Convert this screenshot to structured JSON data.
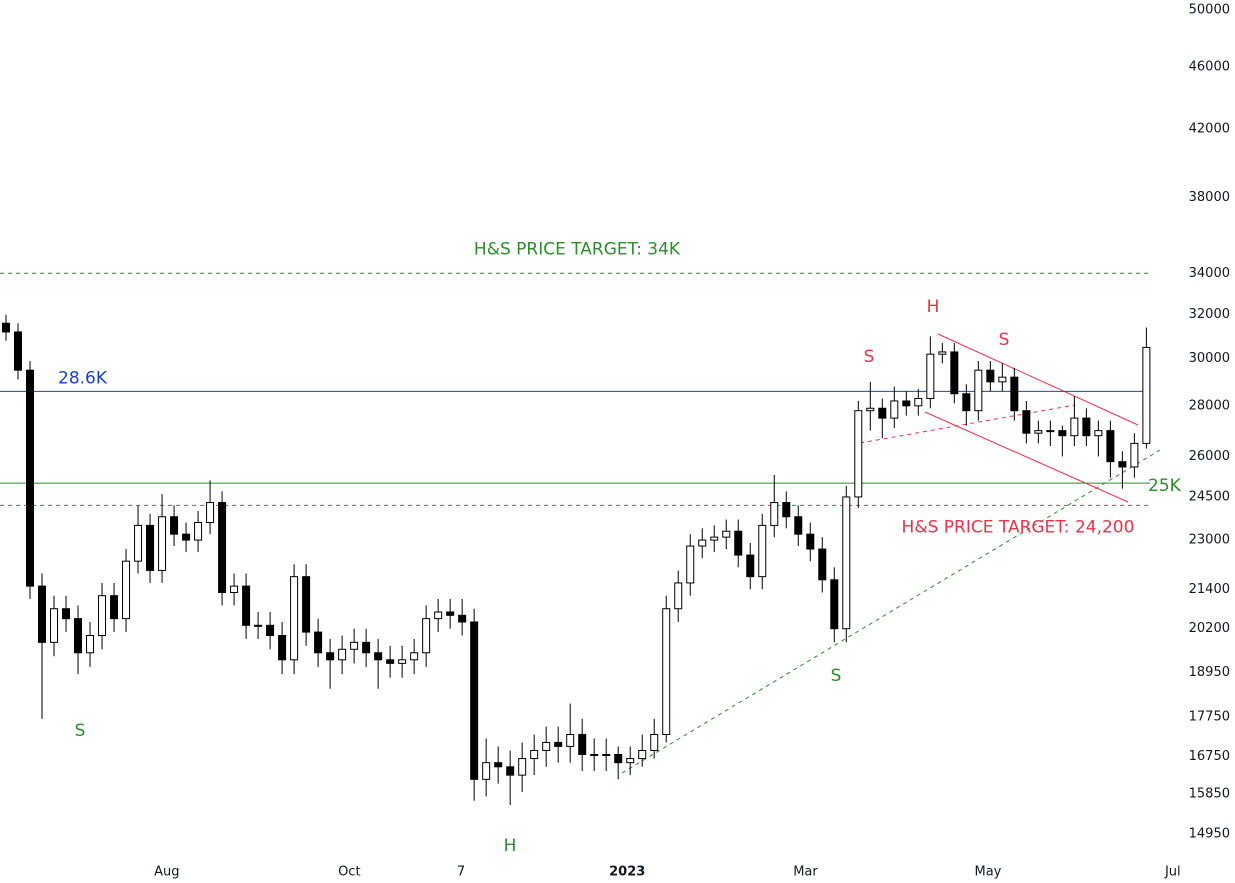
{
  "chart_data": {
    "type": "candlestick",
    "log_scale": true,
    "xlim": [
      -0.5,
      97.8
    ],
    "xticks": [
      {
        "value": 13.4,
        "label": "Aug"
      },
      {
        "value": 28.6,
        "label": "Oct"
      },
      {
        "value": 37.9,
        "label": "7"
      },
      {
        "value": 51.75,
        "label": "2023"
      },
      {
        "value": 66.6,
        "label": "Mar"
      },
      {
        "value": 81.8,
        "label": "May"
      },
      {
        "value": 97.2,
        "label": "Jul"
      }
    ],
    "ylim": [
      14500,
      50740
    ],
    "yticks": [
      50000,
      46000,
      42000,
      38000,
      34000,
      32000,
      30000,
      28000,
      26000,
      24500,
      23000,
      21400,
      20200,
      18950,
      17750,
      16750,
      15850,
      14950
    ],
    "up_color": "#ffffff",
    "down_color": "#000000",
    "wick_color": "#000000",
    "open": [
      31600,
      31200,
      29500,
      21500,
      19800,
      20800,
      20500,
      19500,
      20000,
      21200,
      20500,
      22300,
      23500,
      22000,
      23800,
      23200,
      23000,
      23600,
      24300,
      21300,
      21500,
      20300,
      20300,
      20000,
      19300,
      21800,
      20100,
      19500,
      19300,
      19600,
      19800,
      19500,
      19300,
      19200,
      19300,
      19500,
      20500,
      20700,
      20600,
      20400,
      16200,
      16600,
      16500,
      16300,
      16700,
      16900,
      17100,
      17000,
      17300,
      16800,
      16800,
      16800,
      16600,
      16700,
      16900,
      17300,
      20800,
      21600,
      22800,
      23000,
      23100,
      23300,
      22500,
      21800,
      23500,
      24300,
      23800,
      23200,
      22700,
      21700,
      20200,
      24500,
      27800,
      27900,
      27500,
      28200,
      28000,
      28300,
      30200,
      30300,
      28500,
      27800,
      29500,
      29000,
      29200,
      27800,
      26900,
      27000,
      27000,
      26800,
      27500,
      26800,
      27000,
      25800,
      25600,
      26500
    ],
    "high": [
      32000,
      31600,
      29900,
      21900,
      21200,
      21200,
      20900,
      20400,
      21600,
      21600,
      22700,
      24200,
      23900,
      24600,
      24200,
      23600,
      24000,
      25100,
      24700,
      21900,
      21900,
      20700,
      20700,
      20400,
      22200,
      22200,
      20500,
      19900,
      20000,
      20200,
      20200,
      19900,
      19700,
      19700,
      19900,
      20900,
      21100,
      21100,
      21100,
      20800,
      17200,
      17000,
      16900,
      17100,
      17300,
      17500,
      17500,
      18100,
      17700,
      17200,
      17200,
      17000,
      17000,
      17300,
      17700,
      21200,
      22000,
      23200,
      23400,
      23500,
      23700,
      23700,
      22900,
      23900,
      25300,
      24700,
      24200,
      23600,
      23100,
      22100,
      24900,
      28200,
      29000,
      28300,
      28800,
      28600,
      28700,
      31000,
      30700,
      30700,
      28900,
      29900,
      29900,
      29800,
      29600,
      28200,
      27400,
      27400,
      27200,
      28400,
      27900,
      27400,
      27400,
      26200,
      26900,
      31400
    ],
    "low": [
      30800,
      29100,
      21100,
      17700,
      19400,
      20100,
      18900,
      19100,
      19600,
      20100,
      20100,
      21900,
      21600,
      21600,
      22800,
      22600,
      22600,
      23200,
      20900,
      20900,
      19900,
      19900,
      19600,
      18900,
      18900,
      19700,
      19100,
      18500,
      18900,
      19200,
      19100,
      18500,
      18800,
      18800,
      18900,
      19100,
      20100,
      20200,
      20000,
      15700,
      15800,
      16100,
      15600,
      15900,
      16300,
      16500,
      16600,
      16600,
      16400,
      16400,
      16400,
      16200,
      16300,
      16500,
      16700,
      17100,
      20400,
      21200,
      22400,
      22600,
      22700,
      22100,
      21400,
      21400,
      23100,
      23400,
      22800,
      22300,
      21300,
      19800,
      19800,
      24100,
      27000,
      26700,
      27100,
      27600,
      27600,
      27900,
      29800,
      28100,
      27200,
      27400,
      28600,
      28600,
      27400,
      26500,
      26500,
      26400,
      26000,
      26400,
      26400,
      26000,
      25200,
      24800,
      25200,
      26300
    ],
    "close": [
      31200,
      29500,
      21500,
      19800,
      20800,
      20500,
      19500,
      20000,
      21200,
      20500,
      22300,
      23500,
      22000,
      23800,
      23200,
      23000,
      23600,
      24300,
      21300,
      21500,
      20300,
      20300,
      20000,
      19300,
      21800,
      20100,
      19500,
      19300,
      19600,
      19800,
      19500,
      19300,
      19200,
      19300,
      19500,
      20500,
      20700,
      20600,
      20400,
      16200,
      16600,
      16500,
      16300,
      16700,
      16900,
      17100,
      17000,
      17300,
      16800,
      16800,
      16800,
      16600,
      16700,
      16900,
      17300,
      20800,
      21600,
      22800,
      23000,
      23100,
      23300,
      22500,
      21800,
      23500,
      24300,
      23800,
      23200,
      22700,
      21700,
      20200,
      24500,
      27800,
      27900,
      27500,
      28200,
      28000,
      28300,
      30200,
      30300,
      28500,
      27800,
      29500,
      29000,
      29200,
      27800,
      26900,
      27000,
      27000,
      26800,
      27500,
      26800,
      27000,
      25800,
      25600,
      26500,
      30500
    ],
    "levels": [
      {
        "label": "H&S PRICE TARGET: 34K",
        "value": 34000,
        "color": "#2e8b2e",
        "dashed": true
      },
      {
        "label": "28.6K",
        "value": 28600,
        "color": "#1e40c0",
        "dashed": false
      },
      {
        "label": "25K",
        "value": 25000,
        "color": "#2e8b2e",
        "dashed": false
      },
      {
        "label": "H&S PRICE TARGET: 24,200",
        "value": 24200,
        "color": "#e8334a",
        "dashed": true
      }
    ],
    "pattern_labels": [
      "S",
      "H",
      "S",
      "S",
      "H",
      "S"
    ]
  }
}
